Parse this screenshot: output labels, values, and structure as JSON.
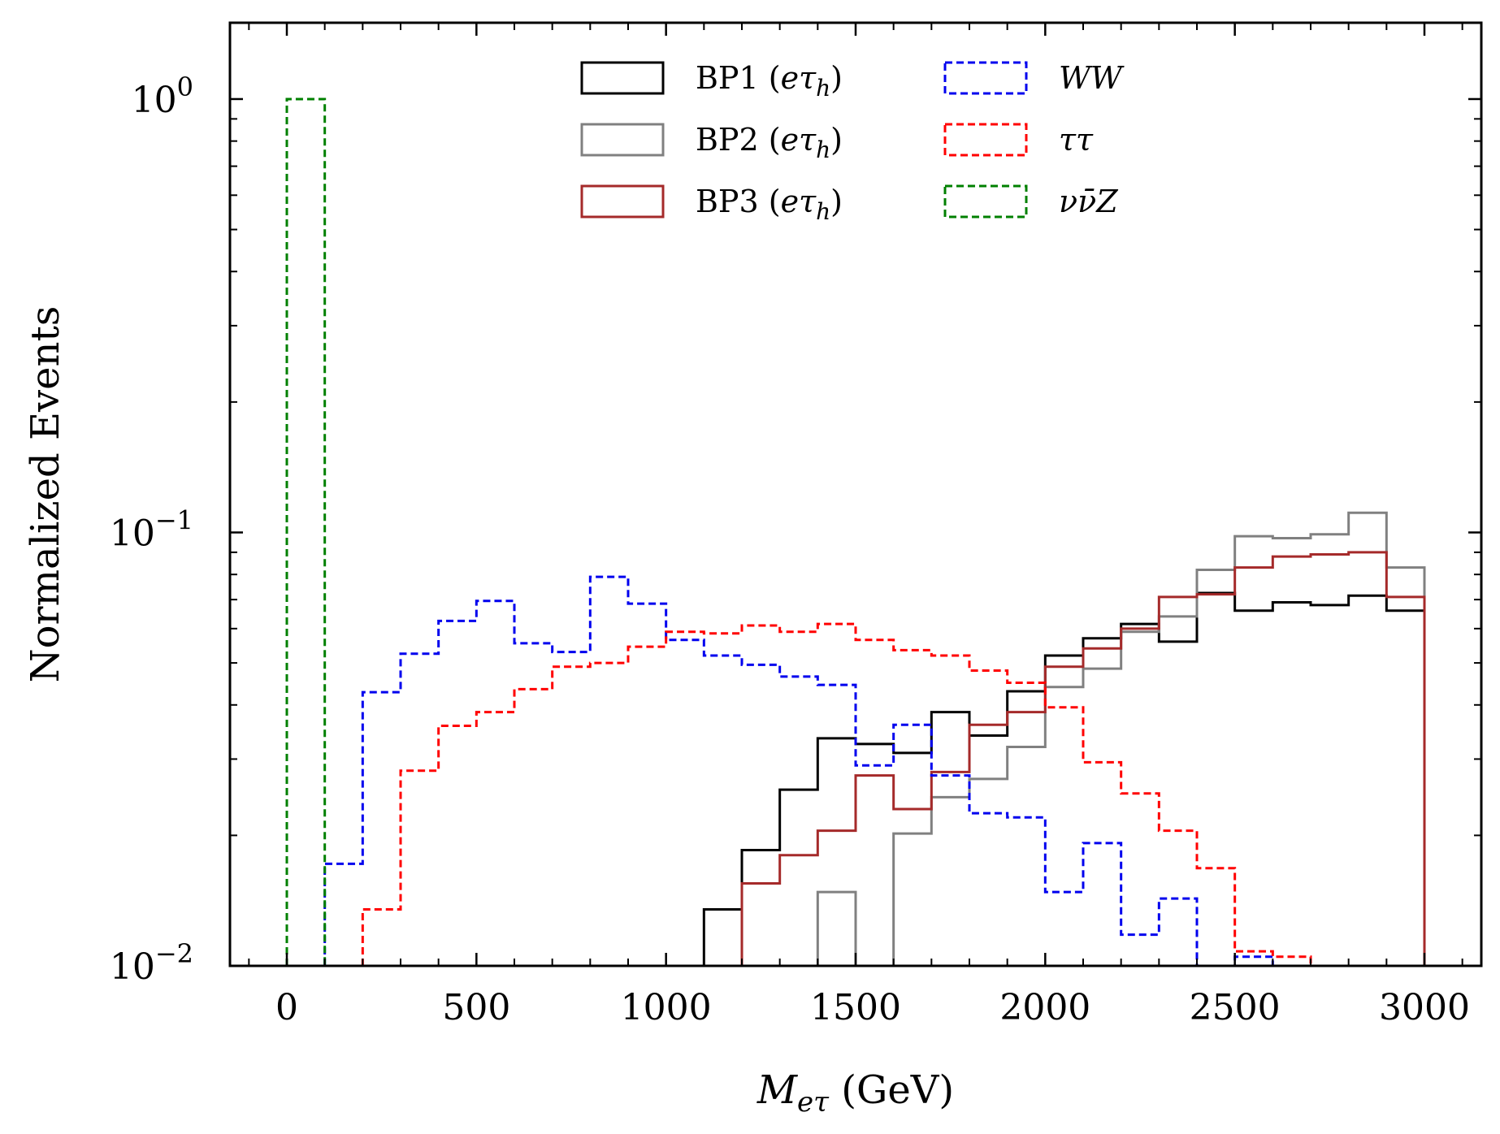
{
  "chart_data": {
    "type": "histogram",
    "xlabel": {
      "main": "M",
      "sub": "eτ",
      "unit": " (GeV)"
    },
    "ylabel": "Normalized Events",
    "xlim": [
      -150,
      3150
    ],
    "ylim": [
      0.01,
      1.5
    ],
    "yscale": "log",
    "grid": false,
    "legend_placement": "top-center",
    "bin_width": 100,
    "xticks": [
      0,
      500,
      1000,
      1500,
      2000,
      2500,
      3000
    ],
    "xtick_labels": [
      "0",
      "500",
      "1000",
      "1500",
      "2000",
      "2500",
      "3000"
    ],
    "yticks": [
      0.01,
      0.1,
      1
    ],
    "ytick_labels": [
      {
        "base": "10",
        "exp": "−2"
      },
      {
        "base": "10",
        "exp": "−1"
      },
      {
        "base": "10",
        "exp": "0"
      }
    ],
    "series": [
      {
        "key": "bp1",
        "name": "BP1",
        "name_sub": "eτ",
        "name_subsub": "h",
        "color": "#000000",
        "dashed": false,
        "bins_start": 1100,
        "values": [
          0.0135,
          0.0185,
          0.0255,
          0.0335,
          0.0325,
          0.031,
          0.0385,
          0.034,
          0.043,
          0.052,
          0.057,
          0.0615,
          0.056,
          0.0725,
          0.066,
          0.069,
          0.068,
          0.0715,
          0.066
        ]
      },
      {
        "key": "bp2",
        "name": "BP2",
        "name_sub": "eτ",
        "name_subsub": "h",
        "color": "#808080",
        "dashed": false,
        "bins_start": 1400,
        "values": [
          0.0148,
          0.0091,
          0.0202,
          0.0245,
          0.027,
          0.032,
          0.044,
          0.0485,
          0.059,
          0.064,
          0.082,
          0.098,
          0.097,
          0.099,
          0.111,
          0.083
        ]
      },
      {
        "key": "bp3",
        "name": "BP3",
        "name_sub": "eτ",
        "name_subsub": "h",
        "color": "#a52a2a",
        "dashed": false,
        "bins_start": 1200,
        "values": [
          0.0155,
          0.018,
          0.0205,
          0.0275,
          0.023,
          0.028,
          0.036,
          0.0385,
          0.049,
          0.054,
          0.06,
          0.071,
          0.072,
          0.083,
          0.088,
          0.089,
          0.09,
          0.071
        ]
      },
      {
        "key": "ww",
        "name": "WW",
        "color": "#0000ee",
        "dashed": true,
        "bins_start": 100,
        "values": [
          0.0172,
          0.0428,
          0.0525,
          0.0625,
          0.0695,
          0.0555,
          0.053,
          0.079,
          0.0685,
          0.0565,
          0.052,
          0.0495,
          0.0465,
          0.0445,
          0.029,
          0.036,
          0.0275,
          0.0225,
          0.022,
          0.0148,
          0.0192,
          0.0118,
          0.0143,
          0.0092,
          0.0105
        ]
      },
      {
        "key": "tautau",
        "name": "ττ",
        "color": "#ff0000",
        "dashed": true,
        "bins_start": 200,
        "values": [
          0.0135,
          0.0282,
          0.0358,
          0.0385,
          0.0435,
          0.049,
          0.05,
          0.0545,
          0.059,
          0.0585,
          0.061,
          0.059,
          0.0615,
          0.0565,
          0.0535,
          0.052,
          0.048,
          0.045,
          0.0395,
          0.0295,
          0.025,
          0.0205,
          0.0168,
          0.0108,
          0.0105
        ]
      },
      {
        "key": "nunuz",
        "name": "νν̄Z",
        "color": "#008000",
        "dashed": true,
        "bins_start": 0,
        "values": [
          1.0
        ]
      }
    ]
  }
}
